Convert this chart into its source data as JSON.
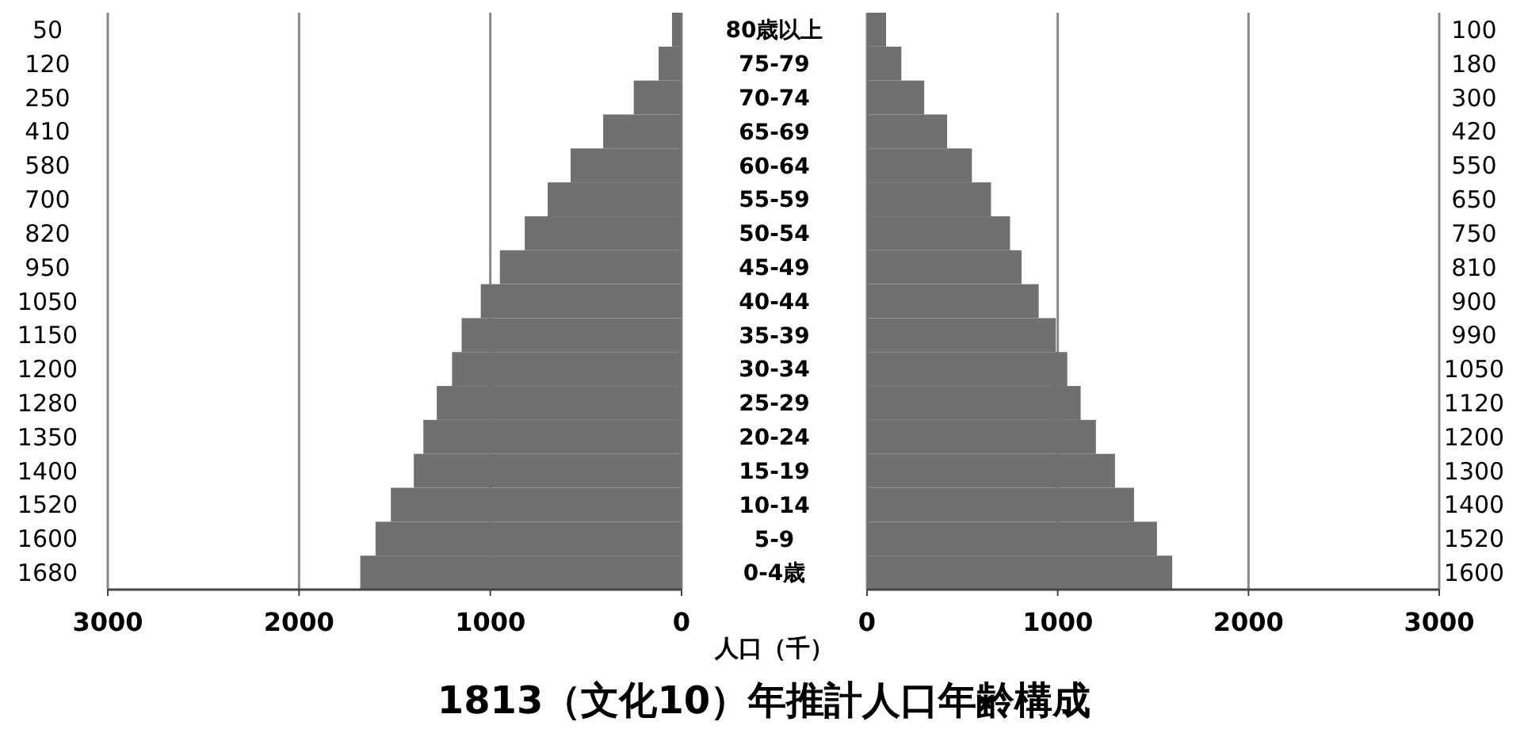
{
  "chart_data": [
    {
      "type": "bar",
      "orientation": "horizontal",
      "title": "1813（文化10）年推計人口年齢構成",
      "xlabel": "人口（千）",
      "categories": [
        "80歳以上",
        "75-79",
        "70-74",
        "65-69",
        "60-64",
        "55-59",
        "50-54",
        "45-49",
        "40-44",
        "35-39",
        "30-34",
        "25-29",
        "20-24",
        "15-19",
        "10-14",
        "5-9",
        "0-4歳"
      ],
      "values": [
        50,
        120,
        250,
        410,
        580,
        700,
        820,
        950,
        1050,
        1150,
        1200,
        1280,
        1350,
        1400,
        1520,
        1600,
        1680
      ],
      "color": "#707070",
      "xlim": [
        3000,
        0
      ],
      "xticks": [
        3000,
        2000,
        1000,
        0
      ],
      "grid": "x",
      "data_labels": true
    },
    {
      "type": "bar",
      "orientation": "horizontal",
      "categories": [
        null,
        null,
        null,
        null,
        null,
        null,
        null,
        null,
        null,
        null,
        null,
        null,
        null,
        null,
        null,
        null,
        null
      ],
      "values": [
        100,
        180,
        300,
        420,
        550,
        650,
        750,
        810,
        900,
        990,
        1050,
        1120,
        1200,
        1300,
        1400,
        1520,
        1600
      ],
      "color": "#707070",
      "xlim": [
        0,
        3000
      ],
      "xticks": [
        0,
        1000,
        2000,
        3000
      ],
      "grid": "x",
      "data_labels": true,
      "tick_labels": "x"
    }
  ]
}
